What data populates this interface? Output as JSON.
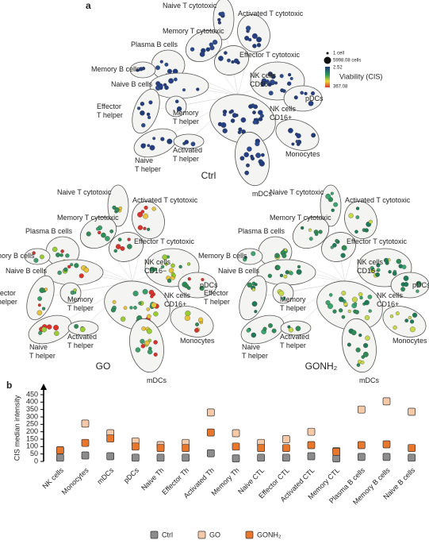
{
  "panel_a": {
    "letter": "a",
    "networks": [
      {
        "label": "Ctrl"
      },
      {
        "label": "GO"
      },
      {
        "label": "GONH₂"
      }
    ],
    "clusters": [
      {
        "lines": [
          "Naive T cytotoxic"
        ]
      },
      {
        "lines": [
          "Activated T cytotoxic"
        ]
      },
      {
        "lines": [
          "Memory T cytotoxic"
        ]
      },
      {
        "lines": [
          "Plasma B cells"
        ]
      },
      {
        "lines": [
          "Effector T cytotoxic"
        ]
      },
      {
        "lines": [
          "Memory B cells"
        ]
      },
      {
        "lines": [
          "Naive B cells"
        ]
      },
      {
        "lines": [
          "NK cells",
          "CD16−"
        ]
      },
      {
        "lines": [
          "pDCs"
        ]
      },
      {
        "lines": [
          "NK cells",
          "CD16+"
        ]
      },
      {
        "lines": [
          "Effector",
          "T helper"
        ]
      },
      {
        "lines": [
          "Memory",
          "T helper"
        ]
      },
      {
        "lines": [
          "Naive",
          "T helper"
        ]
      },
      {
        "lines": [
          "Activated",
          "T helper"
        ]
      },
      {
        "lines": [
          "Monocytes"
        ]
      },
      {
        "lines": [
          "mDCs"
        ]
      }
    ],
    "legend": {
      "size_min": "1 cell",
      "size_max": "5998.08 cells",
      "color_min": "2.52",
      "title": "Viability (CIS)",
      "color_max": "367.08"
    }
  },
  "chart_data": {
    "type": "dot",
    "panel_label": "b",
    "ylabel": "CIS median intensity",
    "categories": [
      "NK cells",
      "Monocytes",
      "mDCs",
      "pDCs",
      "Naive Th",
      "Effector Th",
      "Activated Th",
      "Memory Th",
      "Naive CTL",
      "Effector CTL",
      "Activated CTL",
      "Memory CTL",
      "Plasma B cells",
      "Memory B cells",
      "Naive B cells"
    ],
    "series": [
      {
        "name": "Ctrl",
        "color": "#8c8c8c",
        "values": [
          25,
          40,
          35,
          25,
          25,
          25,
          55,
          20,
          25,
          25,
          35,
          20,
          30,
          30,
          25
        ]
      },
      {
        "name": "GO",
        "color": "#f6c9a8",
        "values": [
          75,
          255,
          190,
          135,
          110,
          125,
          330,
          190,
          125,
          150,
          200,
          70,
          350,
          405,
          335
        ]
      },
      {
        "name": "GONH₂",
        "color": "#e8762b",
        "values": [
          75,
          125,
          155,
          100,
          90,
          90,
          195,
          100,
          90,
          90,
          110,
          65,
          110,
          115,
          90
        ]
      }
    ],
    "ylim": [
      0,
      450
    ],
    "yticks": [
      0,
      50,
      100,
      150,
      200,
      250,
      300,
      350,
      400,
      450
    ]
  }
}
